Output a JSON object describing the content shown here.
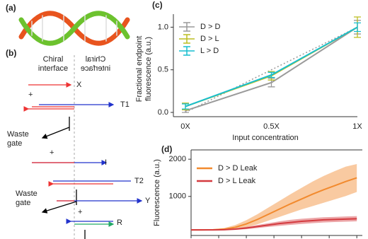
{
  "diagram": {
    "panel_a": "(a)",
    "panel_b": "(b)",
    "interface_left": [
      "Chiral",
      "interface"
    ],
    "interface_right": [
      "Chiral",
      "interface"
    ],
    "labels": {
      "x": "X",
      "plus1": "+",
      "t1": "T1",
      "waste1": [
        "Waste",
        "gate"
      ],
      "plus2": "+",
      "i": "I",
      "t2": "T2",
      "waste2": [
        "Waste",
        "gate"
      ],
      "y": "Y",
      "plus3": "+",
      "r": "R"
    }
  },
  "chart_data": [
    {
      "type": "line",
      "label": "(c)",
      "ylabel": [
        "Fractional endpoint",
        "fluorescence (a.u.)"
      ],
      "xlabel": "Input concentration",
      "categories": [
        "0X",
        "0.5X",
        "1X"
      ],
      "ylim": [
        -0.05,
        1.07
      ],
      "yticks": [
        {
          "value": 0,
          "label": "0.0"
        },
        {
          "value": 0.5,
          "label": "0.5"
        },
        {
          "value": 1,
          "label": "1.0"
        }
      ],
      "reference_line": {
        "values": [
          0,
          0.5,
          1
        ],
        "color": "#999999"
      },
      "legend": "upper left",
      "series": [
        {
          "name": "D > D",
          "color": "#9a9a9a",
          "values": [
            0.02,
            0.35,
            1.0
          ],
          "errors": [
            0.02,
            0.05,
            0.08
          ]
        },
        {
          "name": "D > L",
          "color": "#bcbd22",
          "values": [
            0.07,
            0.43,
            1.0
          ],
          "errors": [
            0.04,
            0.05,
            0.12
          ]
        },
        {
          "name": "L > D",
          "color": "#17becf",
          "values": [
            0.07,
            0.44,
            1.0
          ],
          "errors": [
            0.03,
            0.03,
            0.05
          ]
        }
      ]
    },
    {
      "type": "band-line",
      "label": "(d)",
      "ylabel": "Fluorescence (a.u.)",
      "legend": "upper left",
      "x": [
        0,
        1,
        2,
        3,
        4,
        5,
        6,
        7,
        8,
        9,
        10,
        11,
        12,
        13,
        14,
        15
      ],
      "xlim": [
        0,
        15.5
      ],
      "ylim": [
        -50,
        2250
      ],
      "yticks": [
        1000,
        2000
      ],
      "series": [
        {
          "name": "D > D Leak",
          "color": "#f28a2e",
          "values": [
            100,
            100,
            105,
            120,
            170,
            260,
            380,
            520,
            660,
            800,
            930,
            1060,
            1180,
            1290,
            1400,
            1500
          ],
          "upper": [
            100,
            105,
            115,
            150,
            230,
            360,
            520,
            700,
            880,
            1060,
            1230,
            1400,
            1550,
            1680,
            1800,
            1870
          ],
          "lower": [
            100,
            95,
            95,
            95,
            115,
            170,
            250,
            350,
            450,
            550,
            650,
            740,
            830,
            920,
            1010,
            1120
          ]
        },
        {
          "name": "D > L Leak",
          "color": "#d43a3f",
          "values": [
            100,
            100,
            100,
            105,
            120,
            150,
            190,
            230,
            270,
            300,
            330,
            350,
            370,
            380,
            390,
            400
          ],
          "upper": [
            100,
            102,
            105,
            115,
            140,
            180,
            230,
            280,
            330,
            370,
            400,
            420,
            440,
            450,
            460,
            470
          ],
          "lower": [
            100,
            98,
            95,
            95,
            100,
            120,
            150,
            180,
            210,
            235,
            260,
            280,
            300,
            310,
            320,
            330
          ]
        }
      ]
    }
  ]
}
